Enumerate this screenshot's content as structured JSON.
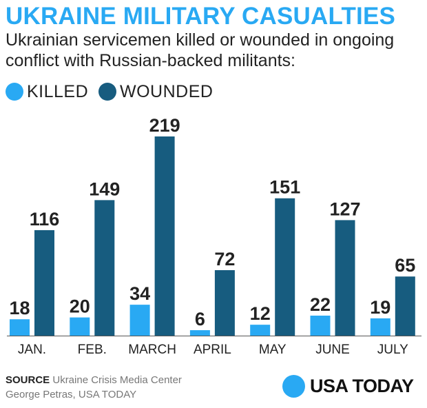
{
  "header": {
    "title": "UKRAINE MILITARY CASUALTIES",
    "subtitle": "Ukrainian servicemen killed or wounded in ongoing conflict with Russian-backed militants:"
  },
  "colors": {
    "title": "#29a9f3",
    "killed": "#29a9f3",
    "wounded": "#175c7f",
    "axis": "#555555"
  },
  "legend": {
    "killed": "KILLED",
    "wounded": "WOUNDED"
  },
  "chart_data": {
    "type": "bar",
    "title": "UKRAINE MILITARY CASUALTIES",
    "categories": [
      "JAN.",
      "FEB.",
      "MARCH",
      "APRIL",
      "MAY",
      "JUNE",
      "JULY"
    ],
    "series": [
      {
        "name": "KILLED",
        "values": [
          18,
          20,
          34,
          6,
          12,
          22,
          19
        ]
      },
      {
        "name": "WOUNDED",
        "values": [
          116,
          149,
          219,
          72,
          151,
          127,
          65
        ]
      }
    ],
    "xlabel": "",
    "ylabel": "",
    "ylim": [
      0,
      219
    ],
    "grid": false,
    "legend_position": "top-left"
  },
  "footer": {
    "source_label": "SOURCE",
    "source_text": "Ukraine Crisis Media Center",
    "credit": "George Petras, USA TODAY",
    "logo_text": "USA TODAY"
  }
}
